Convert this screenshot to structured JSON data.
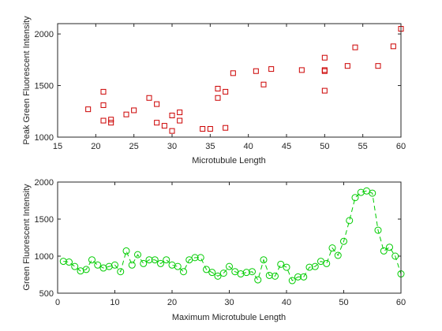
{
  "chart_data": [
    {
      "type": "scatter",
      "xlabel": "Microtubule Length",
      "ylabel": "Peak Green Fluorescent Intensity",
      "xlim": [
        15,
        60
      ],
      "ylim": [
        1000,
        2100
      ],
      "xticks": [
        15,
        20,
        25,
        30,
        35,
        40,
        45,
        50,
        55,
        60
      ],
      "yticks": [
        1000,
        1500,
        2000
      ],
      "marker": "square",
      "color": "#cc0000",
      "x": [
        19,
        21,
        21,
        21,
        22,
        22,
        24,
        25,
        27,
        28,
        28,
        29,
        30,
        30,
        31,
        31,
        34,
        35,
        36,
        36,
        37,
        37,
        38,
        41,
        42,
        43,
        47,
        50,
        50,
        50,
        50,
        53,
        54,
        57,
        59,
        60
      ],
      "y": [
        1270,
        1440,
        1310,
        1160,
        1170,
        1140,
        1220,
        1260,
        1380,
        1320,
        1140,
        1110,
        1210,
        1060,
        1240,
        1160,
        1080,
        1080,
        1470,
        1380,
        1440,
        1090,
        1620,
        1640,
        1510,
        1660,
        1650,
        1770,
        1650,
        1640,
        1450,
        1690,
        1870,
        1690,
        1880,
        2050
      ]
    },
    {
      "type": "line",
      "xlabel": "Maximum Microtubule Length",
      "ylabel": "Green Fluorescent Intensity",
      "xlim": [
        0,
        60
      ],
      "ylim": [
        500,
        2000
      ],
      "xticks": [
        0,
        10,
        20,
        30,
        40,
        50,
        60
      ],
      "yticks": [
        500,
        1000,
        1500,
        2000
      ],
      "marker": "circle",
      "linestyle": "dashed",
      "color": "#00cc00",
      "x": [
        1,
        2,
        3,
        4,
        5,
        6,
        7,
        8,
        9,
        10,
        11,
        12,
        13,
        14,
        15,
        16,
        17,
        18,
        19,
        20,
        21,
        22,
        23,
        24,
        25,
        26,
        27,
        28,
        29,
        30,
        31,
        32,
        33,
        34,
        35,
        36,
        37,
        38,
        39,
        40,
        41,
        42,
        43,
        44,
        45,
        46,
        47,
        48,
        49,
        50,
        51,
        52,
        53,
        54,
        55,
        56,
        57,
        58,
        59,
        60
      ],
      "y": [
        930,
        920,
        860,
        800,
        820,
        950,
        880,
        840,
        860,
        880,
        790,
        1070,
        880,
        1020,
        900,
        950,
        950,
        900,
        950,
        880,
        860,
        790,
        950,
        980,
        980,
        820,
        780,
        730,
        770,
        860,
        790,
        760,
        780,
        790,
        680,
        950,
        740,
        730,
        890,
        850,
        670,
        720,
        720,
        850,
        860,
        930,
        900,
        1110,
        1010,
        1200,
        1480,
        1790,
        1860,
        1880,
        1850,
        1350,
        1070,
        1120,
        1000,
        760
      ]
    }
  ]
}
